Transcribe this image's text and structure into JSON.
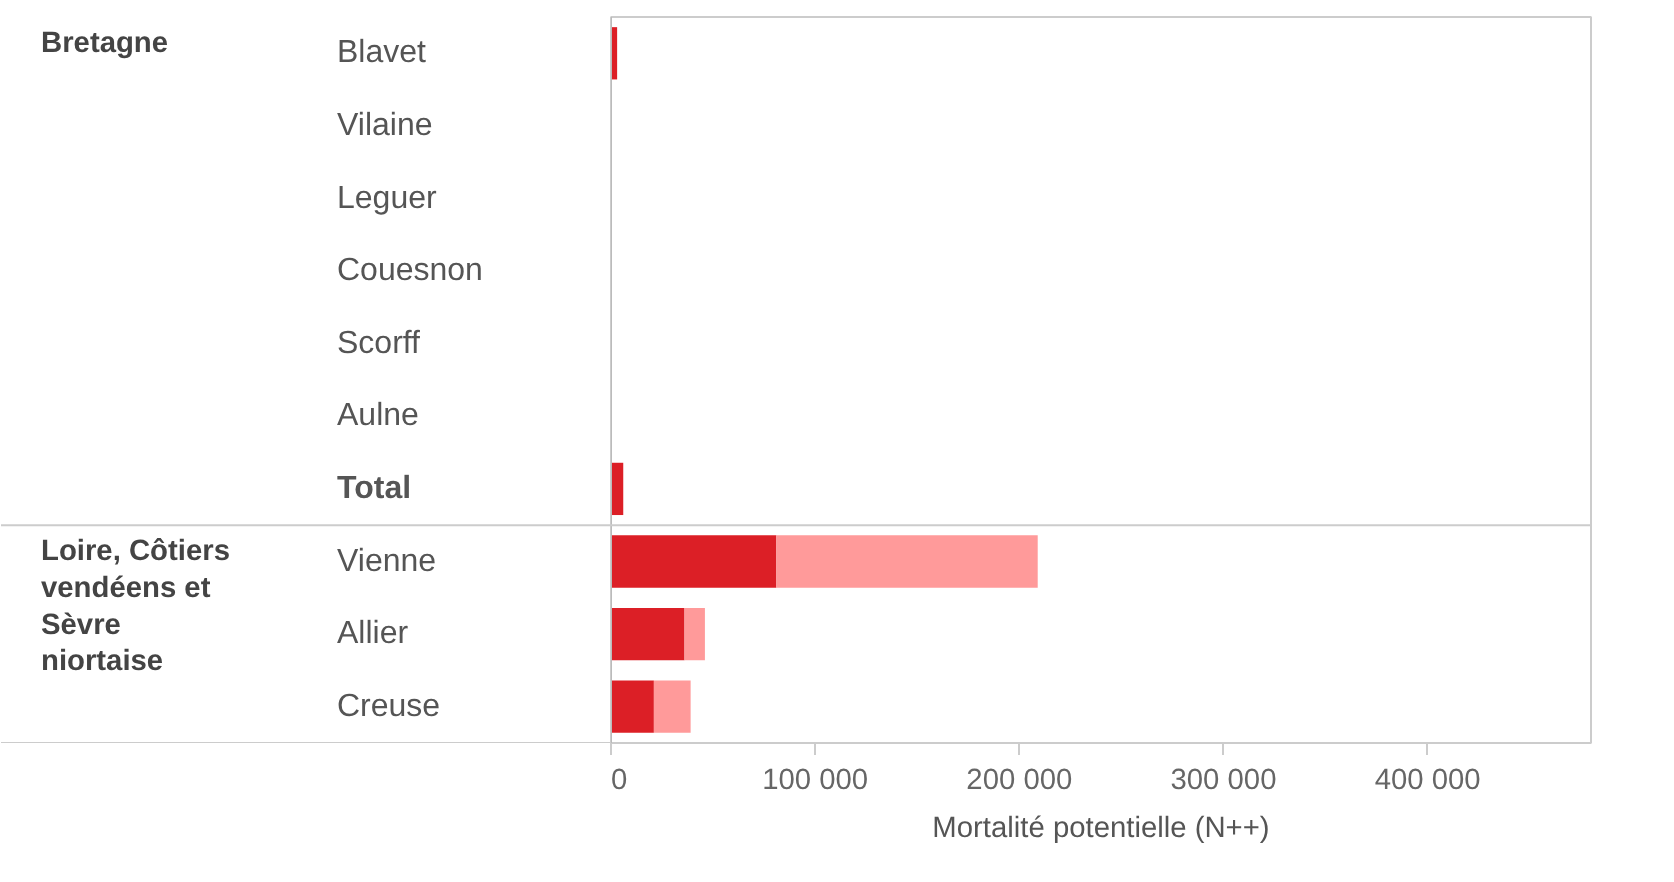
{
  "chart_data": {
    "type": "bar",
    "orientation": "horizontal",
    "stacked": true,
    "xlabel": "Mortalité potentielle (N++)",
    "categories": [
      "Blavet",
      "Vilaine",
      "Leguer",
      "Couesnon",
      "Scorff",
      "Aulne",
      "Total",
      "Vienne",
      "Allier",
      "Creuse"
    ],
    "series": [
      {
        "color": "#dc1f26",
        "values": [
          3000,
          0,
          0,
          0,
          0,
          0,
          6000,
          81000,
          36000,
          21000
        ]
      },
      {
        "color": "#ff9a9a",
        "values": [
          0,
          0,
          0,
          0,
          0,
          0,
          0,
          128000,
          10000,
          18000
        ]
      }
    ],
    "xlim": [
      0,
      480000
    ],
    "xticks": [
      0,
      {
        "value": 100000,
        "label": "100 000"
      },
      {
        "value": 200000,
        "label": "200 000"
      },
      {
        "value": 300000,
        "label": "300 000"
      },
      {
        "value": 400000,
        "label": "400 000"
      }
    ],
    "grid": false,
    "annotations": [
      "Bretagne",
      "Loire, Côtiers vendéens et Sèvre niortaise"
    ]
  }
}
